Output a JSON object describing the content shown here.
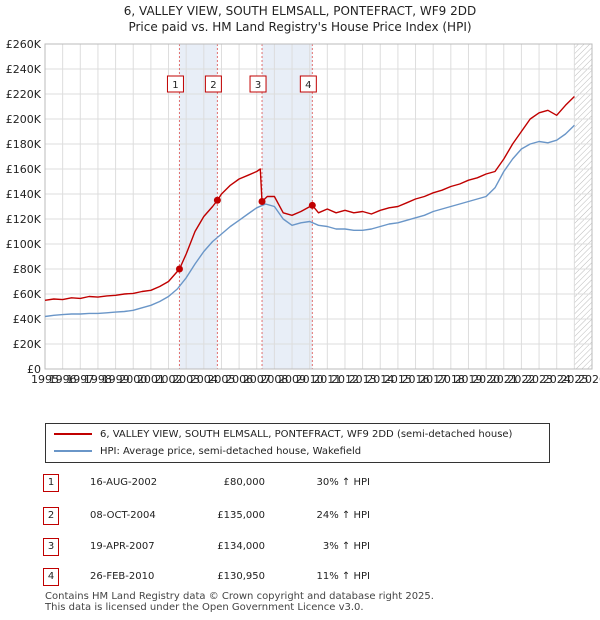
{
  "title": "6, VALLEY VIEW, SOUTH ELMSALL, PONTEFRACT, WF9 2DD",
  "subtitle": "Price paid vs. HM Land Registry's House Price Index (HPI)",
  "colors": {
    "property": "#c00000",
    "hpi": "#6a96c8",
    "sale_band": "#e8eef7",
    "grid": "#dddddd",
    "marker_line": "#e07070",
    "future_hatch": "#bbbbbb"
  },
  "chart_data": {
    "type": "line",
    "title": "6, VALLEY VIEW, SOUTH ELMSALL, PONTEFRACT, WF9 2DD",
    "subtitle": "Price paid vs. HM Land Registry's House Price Index (HPI)",
    "xlabel": "",
    "ylabel": "",
    "xlim": [
      1995,
      2026
    ],
    "ylim": [
      0,
      260000
    ],
    "y_ticks": [
      0,
      20000,
      40000,
      60000,
      80000,
      100000,
      120000,
      140000,
      160000,
      180000,
      200000,
      220000,
      240000,
      260000
    ],
    "y_tick_labels": [
      "£0",
      "£20K",
      "£40K",
      "£60K",
      "£80K",
      "£100K",
      "£120K",
      "£140K",
      "£160K",
      "£180K",
      "£200K",
      "£220K",
      "£240K",
      "£260K"
    ],
    "x_ticks": [
      1995,
      1996,
      1997,
      1998,
      1999,
      2000,
      2001,
      2002,
      2003,
      2004,
      2005,
      2006,
      2007,
      2008,
      2009,
      2010,
      2011,
      2012,
      2013,
      2014,
      2015,
      2016,
      2017,
      2018,
      2019,
      2020,
      2021,
      2022,
      2023,
      2024,
      2025,
      2026
    ],
    "x_tick_labels": [
      "1995",
      "1996",
      "1997",
      "1998",
      "1999",
      "2000",
      "2001",
      "2002",
      "2003",
      "2004",
      "2005",
      "2006",
      "2007",
      "2008",
      "2009",
      "2010",
      "2011",
      "2012",
      "2013",
      "2014",
      "2015",
      "2016",
      "2017",
      "2018",
      "2019",
      "2020",
      "2021",
      "2022",
      "2023",
      "2024",
      "2025",
      "2026"
    ],
    "sale_bands": [
      [
        2002.62,
        2004.77
      ],
      [
        2007.3,
        2010.15
      ]
    ],
    "future_from": 2025.0,
    "series": [
      {
        "name": "6, VALLEY VIEW, SOUTH ELMSALL, PONTEFRACT, WF9 2DD (semi-detached house)",
        "x": [
          1995.0,
          1995.5,
          1996.0,
          1996.5,
          1997.0,
          1997.5,
          1998.0,
          1998.5,
          1999.0,
          1999.5,
          2000.0,
          2000.5,
          2001.0,
          2001.5,
          2002.0,
          2002.62,
          2003.0,
          2003.5,
          2004.0,
          2004.5,
          2004.77,
          2005.0,
          2005.5,
          2006.0,
          2006.5,
          2007.0,
          2007.2,
          2007.3,
          2007.6,
          2008.0,
          2008.5,
          2009.0,
          2009.5,
          2010.15,
          2010.5,
          2011.0,
          2011.5,
          2012.0,
          2012.5,
          2013.0,
          2013.5,
          2014.0,
          2014.5,
          2015.0,
          2015.5,
          2016.0,
          2016.5,
          2017.0,
          2017.5,
          2018.0,
          2018.5,
          2019.0,
          2019.5,
          2020.0,
          2020.5,
          2021.0,
          2021.5,
          2022.0,
          2022.5,
          2023.0,
          2023.5,
          2024.0,
          2024.5,
          2025.0
        ],
        "values": [
          55000,
          56000,
          55500,
          57000,
          56500,
          58000,
          57500,
          58500,
          59000,
          60000,
          60500,
          62000,
          63000,
          66000,
          70000,
          80000,
          92000,
          110000,
          122000,
          130000,
          135000,
          140000,
          147000,
          152000,
          155000,
          158000,
          160000,
          134000,
          138000,
          138000,
          125000,
          123000,
          126000,
          130950,
          125000,
          128000,
          125000,
          127000,
          125000,
          126000,
          124000,
          127000,
          129000,
          130000,
          133000,
          136000,
          138000,
          141000,
          143000,
          146000,
          148000,
          151000,
          153000,
          156000,
          158000,
          168000,
          180000,
          190000,
          200000,
          205000,
          207000,
          203000,
          211000,
          218000
        ]
      },
      {
        "name": "HPI: Average price, semi-detached house, Wakefield",
        "x": [
          1995.0,
          1995.5,
          1996.0,
          1996.5,
          1997.0,
          1997.5,
          1998.0,
          1998.5,
          1999.0,
          1999.5,
          2000.0,
          2000.5,
          2001.0,
          2001.5,
          2002.0,
          2002.5,
          2003.0,
          2003.5,
          2004.0,
          2004.5,
          2005.0,
          2005.5,
          2006.0,
          2006.5,
          2007.0,
          2007.5,
          2008.0,
          2008.5,
          2009.0,
          2009.5,
          2010.0,
          2010.5,
          2011.0,
          2011.5,
          2012.0,
          2012.5,
          2013.0,
          2013.5,
          2014.0,
          2014.5,
          2015.0,
          2015.5,
          2016.0,
          2016.5,
          2017.0,
          2017.5,
          2018.0,
          2018.5,
          2019.0,
          2019.5,
          2020.0,
          2020.5,
          2021.0,
          2021.5,
          2022.0,
          2022.5,
          2023.0,
          2023.5,
          2024.0,
          2024.5,
          2025.0
        ],
        "values": [
          42000,
          43000,
          43500,
          44000,
          44000,
          44500,
          44500,
          45000,
          45500,
          46000,
          47000,
          49000,
          51000,
          54000,
          58000,
          64000,
          73000,
          84000,
          94000,
          102000,
          108000,
          114000,
          119000,
          124000,
          129000,
          132000,
          130000,
          120000,
          115000,
          117000,
          118000,
          115000,
          114000,
          112000,
          112000,
          111000,
          111000,
          112000,
          114000,
          116000,
          117000,
          119000,
          121000,
          123000,
          126000,
          128000,
          130000,
          132000,
          134000,
          136000,
          138000,
          145000,
          158000,
          168000,
          176000,
          180000,
          182000,
          181000,
          183000,
          188000,
          195000
        ]
      }
    ],
    "transactions": [
      {
        "num": "1",
        "year": 2002.62,
        "price": 80000
      },
      {
        "num": "2",
        "year": 2004.77,
        "price": 135000
      },
      {
        "num": "3",
        "year": 2007.3,
        "price": 134000
      },
      {
        "num": "4",
        "year": 2010.15,
        "price": 130950
      }
    ]
  },
  "legend": {
    "property": "6, VALLEY VIEW, SOUTH ELMSALL, PONTEFRACT, WF9 2DD (semi-detached house)",
    "hpi": "HPI: Average price, semi-detached house, Wakefield"
  },
  "transactions": [
    {
      "num": "1",
      "date": "16-AUG-2002",
      "price": "£80,000",
      "hpi": "30% ↑ HPI"
    },
    {
      "num": "2",
      "date": "08-OCT-2004",
      "price": "£135,000",
      "hpi": "24% ↑ HPI"
    },
    {
      "num": "3",
      "date": "19-APR-2007",
      "price": "£134,000",
      "hpi": "3% ↑ HPI"
    },
    {
      "num": "4",
      "date": "26-FEB-2010",
      "price": "£130,950",
      "hpi": "11% ↑ HPI"
    }
  ],
  "footer": {
    "line1": "Contains HM Land Registry data © Crown copyright and database right 2025.",
    "line2": "This data is licensed under the Open Government Licence v3.0."
  }
}
